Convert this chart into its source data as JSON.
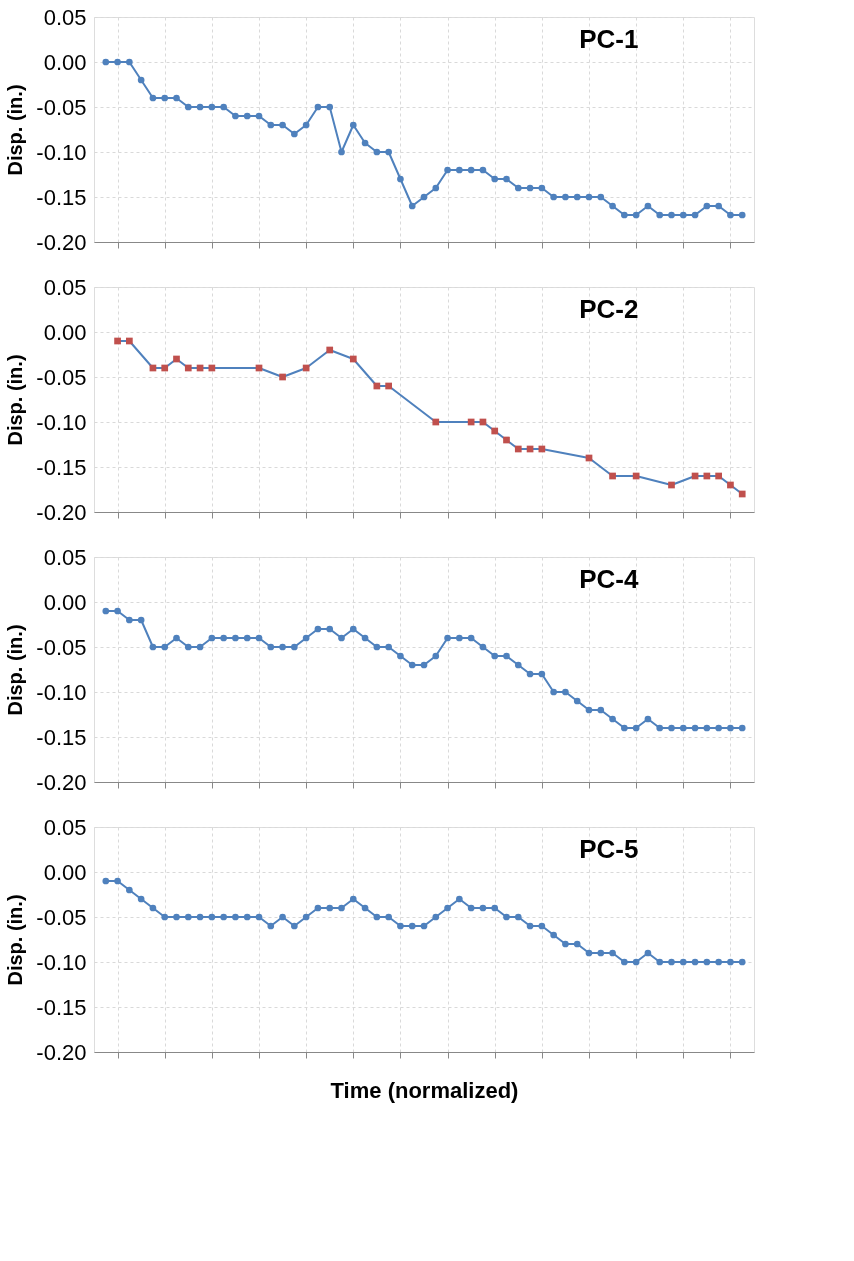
{
  "chart_data": [
    {
      "type": "line",
      "title": "PC-1",
      "ylabel": "Disp. (in.)",
      "categories": [
        null,
        null,
        null,
        null,
        null,
        null,
        null,
        null,
        null,
        null,
        null,
        null,
        null,
        null,
        null,
        null,
        null,
        null,
        null,
        null,
        null,
        null,
        null,
        null,
        null,
        null,
        null,
        null,
        null,
        null,
        null,
        null,
        null,
        null,
        null,
        null,
        null,
        null,
        null,
        null,
        null,
        null,
        null,
        null,
        null,
        null,
        null,
        null,
        null,
        null,
        null,
        null,
        null,
        null,
        null
      ],
      "ylim": [
        -0.2,
        0.05
      ],
      "yticks": [
        {
          "value": -0.2,
          "label": "-0.20"
        },
        {
          "value": -0.15,
          "label": "-0.15"
        },
        {
          "value": -0.1,
          "label": "-0.10"
        },
        {
          "value": -0.05,
          "label": "-0.05"
        },
        {
          "value": 0,
          "label": "0.00"
        },
        {
          "value": 0.05,
          "label": "0.05"
        }
      ],
      "grid": true,
      "marker": "circle",
      "line_style": "solid",
      "series": [
        {
          "color": "#4f81bd",
          "values": [
            0,
            0,
            0,
            -0.02,
            -0.04,
            -0.04,
            -0.04,
            -0.05,
            -0.05,
            -0.05,
            -0.05,
            -0.06,
            -0.06,
            -0.06,
            -0.07,
            -0.07,
            -0.08,
            -0.07,
            -0.05,
            -0.05,
            -0.1,
            -0.07,
            -0.09,
            -0.1,
            -0.1,
            -0.13,
            -0.16,
            -0.15,
            -0.14,
            -0.12,
            -0.12,
            -0.12,
            -0.12,
            -0.13,
            -0.13,
            -0.14,
            -0.14,
            -0.14,
            -0.15,
            -0.15,
            -0.15,
            -0.15,
            -0.15,
            -0.16,
            -0.17,
            -0.17,
            -0.16,
            -0.17,
            -0.17,
            -0.17,
            -0.17,
            -0.16,
            -0.16,
            -0.17,
            -0.17
          ]
        }
      ]
    },
    {
      "type": "line",
      "title": "PC-2",
      "ylabel": "Disp. (in.)",
      "categories": [
        null,
        null,
        null,
        null,
        null,
        null,
        null,
        null,
        null,
        null,
        null,
        null,
        null,
        null,
        null,
        null,
        null,
        null,
        null,
        null,
        null,
        null,
        null,
        null,
        null,
        null,
        null,
        null,
        null,
        null,
        null,
        null,
        null,
        null,
        null,
        null,
        null,
        null,
        null,
        null,
        null,
        null,
        null,
        null,
        null,
        null,
        null,
        null,
        null,
        null,
        null,
        null,
        null,
        null,
        null
      ],
      "ylim": [
        -0.2,
        0.05
      ],
      "yticks": [
        {
          "value": -0.2,
          "label": "-0.20"
        },
        {
          "value": -0.15,
          "label": "-0.15"
        },
        {
          "value": -0.1,
          "label": "-0.10"
        },
        {
          "value": -0.05,
          "label": "-0.05"
        },
        {
          "value": 0,
          "label": "0.00"
        },
        {
          "value": 0.05,
          "label": "0.05"
        }
      ],
      "grid": true,
      "marker": "square",
      "line_style": "solid",
      "series": [
        {
          "color": "#4f81bd",
          "colors": [
            null,
            "#c0504d",
            "#c0504d",
            null,
            "#c0504d",
            "#c0504d",
            "#c0504d",
            "#c0504d",
            "#c0504d",
            "#c0504d",
            null,
            null,
            null,
            "#c0504d",
            null,
            "#c0504d",
            null,
            "#c0504d",
            null,
            "#c0504d",
            null,
            "#c0504d",
            null,
            "#c0504d",
            "#c0504d",
            null,
            null,
            null,
            "#c0504d",
            null,
            null,
            "#c0504d",
            "#c0504d",
            "#c0504d",
            "#c0504d",
            "#c0504d",
            "#c0504d",
            "#c0504d",
            null,
            null,
            null,
            "#c0504d",
            null,
            "#c0504d",
            null,
            "#c0504d",
            null,
            null,
            "#c0504d",
            null,
            "#c0504d",
            "#c0504d",
            "#c0504d",
            "#c0504d",
            "#c0504d"
          ],
          "values": [
            null,
            -0.01,
            -0.01,
            null,
            -0.04,
            -0.04,
            -0.03,
            -0.04,
            -0.04,
            -0.04,
            null,
            null,
            null,
            -0.04,
            null,
            -0.05,
            null,
            -0.04,
            null,
            -0.02,
            null,
            -0.03,
            null,
            -0.06,
            -0.06,
            null,
            null,
            null,
            -0.1,
            null,
            null,
            -0.1,
            -0.1,
            -0.11,
            -0.12,
            -0.13,
            -0.13,
            -0.13,
            null,
            null,
            null,
            -0.14,
            null,
            -0.16,
            null,
            -0.16,
            null,
            null,
            -0.17,
            null,
            -0.16,
            -0.16,
            -0.16,
            -0.17,
            -0.18
          ]
        }
      ]
    },
    {
      "type": "line",
      "title": "PC-4",
      "ylabel": "Disp. (in.)",
      "categories": [
        null,
        null,
        null,
        null,
        null,
        null,
        null,
        null,
        null,
        null,
        null,
        null,
        null,
        null,
        null,
        null,
        null,
        null,
        null,
        null,
        null,
        null,
        null,
        null,
        null,
        null,
        null,
        null,
        null,
        null,
        null,
        null,
        null,
        null,
        null,
        null,
        null,
        null,
        null,
        null,
        null,
        null,
        null,
        null,
        null,
        null,
        null,
        null,
        null,
        null,
        null,
        null,
        null,
        null,
        null
      ],
      "ylim": [
        -0.2,
        0.05
      ],
      "yticks": [
        {
          "value": -0.2,
          "label": "-0.20"
        },
        {
          "value": -0.15,
          "label": "-0.15"
        },
        {
          "value": -0.1,
          "label": "-0.10"
        },
        {
          "value": -0.05,
          "label": "-0.05"
        },
        {
          "value": 0,
          "label": "0.00"
        },
        {
          "value": 0.05,
          "label": "0.05"
        }
      ],
      "grid": true,
      "marker": "circle",
      "line_style": "solid",
      "series": [
        {
          "color": "#4f81bd",
          "values": [
            -0.01,
            -0.01,
            -0.02,
            -0.02,
            -0.05,
            -0.05,
            -0.04,
            -0.05,
            -0.05,
            -0.04,
            -0.04,
            -0.04,
            -0.04,
            -0.04,
            -0.05,
            -0.05,
            -0.05,
            -0.04,
            -0.03,
            -0.03,
            -0.04,
            -0.03,
            -0.04,
            -0.05,
            -0.05,
            -0.06,
            -0.07,
            -0.07,
            -0.06,
            -0.04,
            -0.04,
            -0.04,
            -0.05,
            -0.06,
            -0.06,
            -0.07,
            -0.08,
            -0.08,
            -0.1,
            -0.1,
            -0.11,
            -0.12,
            -0.12,
            -0.13,
            -0.14,
            -0.14,
            -0.13,
            -0.14,
            -0.14,
            -0.14,
            -0.14,
            -0.14,
            -0.14,
            -0.14,
            -0.14
          ]
        }
      ]
    },
    {
      "type": "line",
      "title": "PC-5",
      "ylabel": "Disp. (in.)",
      "xlabel": "Time (normalized)",
      "categories": [
        null,
        null,
        null,
        null,
        null,
        null,
        null,
        null,
        null,
        null,
        null,
        null,
        null,
        null,
        null,
        null,
        null,
        null,
        null,
        null,
        null,
        null,
        null,
        null,
        null,
        null,
        null,
        null,
        null,
        null,
        null,
        null,
        null,
        null,
        null,
        null,
        null,
        null,
        null,
        null,
        null,
        null,
        null,
        null,
        null,
        null,
        null,
        null,
        null,
        null,
        null,
        null,
        null,
        null,
        null
      ],
      "ylim": [
        -0.2,
        0.05
      ],
      "yticks": [
        {
          "value": -0.2,
          "label": "-0.20"
        },
        {
          "value": -0.15,
          "label": "-0.15"
        },
        {
          "value": -0.1,
          "label": "-0.10"
        },
        {
          "value": -0.05,
          "label": "-0.05"
        },
        {
          "value": 0,
          "label": "0.00"
        },
        {
          "value": 0.05,
          "label": "0.05"
        }
      ],
      "grid": true,
      "marker": "circle",
      "line_style": "solid",
      "series": [
        {
          "color": "#4f81bd",
          "values": [
            -0.01,
            -0.01,
            -0.02,
            -0.03,
            -0.04,
            -0.05,
            -0.05,
            -0.05,
            -0.05,
            -0.05,
            -0.05,
            -0.05,
            -0.05,
            -0.05,
            -0.06,
            -0.05,
            -0.06,
            -0.05,
            -0.04,
            -0.04,
            -0.04,
            -0.03,
            -0.04,
            -0.05,
            -0.05,
            -0.06,
            -0.06,
            -0.06,
            -0.05,
            -0.04,
            -0.03,
            -0.04,
            -0.04,
            -0.04,
            -0.05,
            -0.05,
            -0.06,
            -0.06,
            -0.07,
            -0.08,
            -0.08,
            -0.09,
            -0.09,
            -0.09,
            -0.1,
            -0.1,
            -0.09,
            -0.1,
            -0.1,
            -0.1,
            -0.1,
            -0.1,
            -0.1,
            -0.1,
            -0.1
          ]
        }
      ]
    }
  ]
}
